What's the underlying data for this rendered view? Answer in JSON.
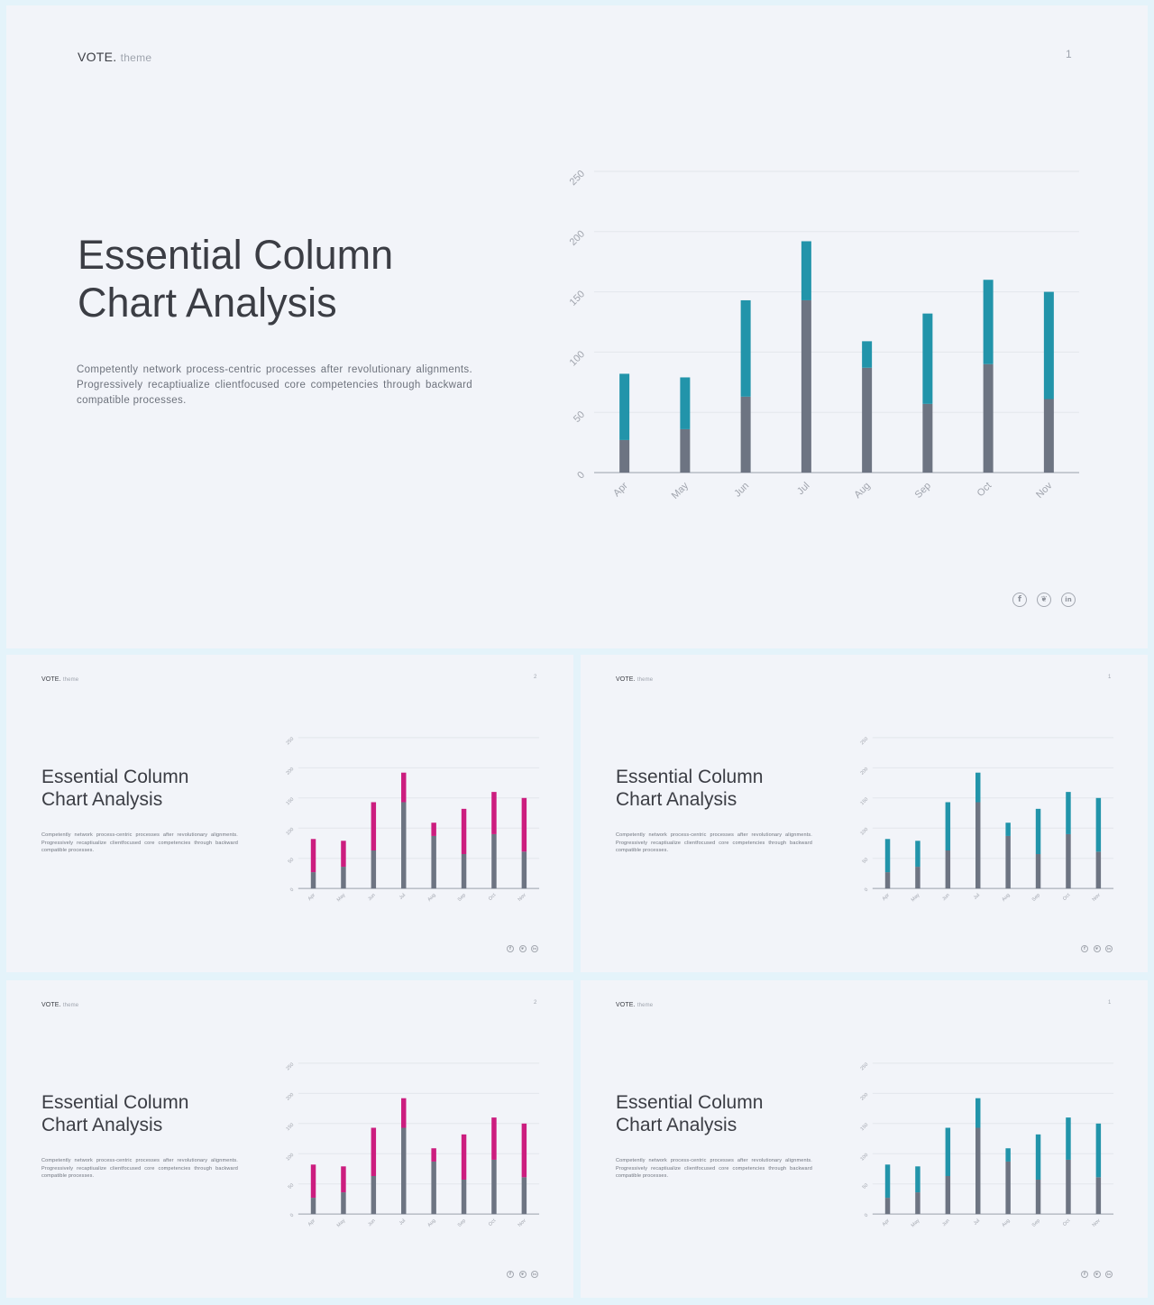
{
  "slides": [
    {
      "brand": "VOTE.",
      "brand_sub": "theme",
      "page_number": "1",
      "title_lines": [
        "Essential Column",
        "Chart Analysis"
      ],
      "body": "Competently network process-centric processes after revolutionary alignments. Progressively recaptiualize clientfocused core competencies through backward compatible processes.",
      "accent_color": "#2294aa",
      "social_icons": [
        "facebook-icon",
        "twitter-icon",
        "linkedin-icon"
      ]
    },
    {
      "brand": "VOTE.",
      "brand_sub": "theme",
      "page_number": "2",
      "title_lines": [
        "Essential Column",
        "Chart Analysis"
      ],
      "body": "Competently network process-centric processes after revolutionary alignments. Progressively recaptiualize clientfocused core competencies through backward compatible processes.",
      "accent_color": "#cc1d7f",
      "social_icons": [
        "facebook-icon",
        "twitter-icon",
        "linkedin-icon"
      ]
    },
    {
      "brand": "VOTE.",
      "brand_sub": "theme",
      "page_number": "1",
      "title_lines": [
        "Essential Column",
        "Chart Analysis"
      ],
      "body": "Competently network process-centric processes after revolutionary alignments. Progressively recaptiualize clientfocused core competencies through backward compatible processes.",
      "accent_color": "#2294aa",
      "social_icons": [
        "facebook-icon",
        "twitter-icon",
        "linkedin-icon"
      ]
    },
    {
      "brand": "VOTE.",
      "brand_sub": "theme",
      "page_number": "2",
      "title_lines": [
        "Essential Column",
        "Chart Analysis"
      ],
      "body": "Competently network process-centric processes after revolutionary alignments. Progressively recaptiualize clientfocused core competencies through backward compatible processes.",
      "accent_color": "#cc1d7f",
      "social_icons": [
        "facebook-icon",
        "twitter-icon",
        "linkedin-icon"
      ]
    },
    {
      "brand": "VOTE.",
      "brand_sub": "theme",
      "page_number": "1",
      "title_lines": [
        "Essential Column",
        "Chart Analysis"
      ],
      "body": "Competently network process-centric processes after revolutionary alignments. Progressively recaptiualize clientfocused core competencies through backward compatible processes.",
      "accent_color": "#2294aa",
      "social_icons": [
        "facebook-icon",
        "twitter-icon",
        "linkedin-icon"
      ]
    }
  ],
  "chart_data": {
    "type": "bar",
    "stacked": true,
    "categories": [
      "Apr",
      "May",
      "Jun",
      "Jul",
      "Aug",
      "Sep",
      "Oct",
      "Nov"
    ],
    "series": [
      {
        "values": [
          27,
          36,
          63,
          143,
          87,
          57,
          90,
          61
        ],
        "color": "#6d7482"
      },
      {
        "values": [
          55,
          43,
          80,
          49,
          22,
          75,
          70,
          89
        ]
      }
    ],
    "yticks": [
      0,
      50,
      100,
      150,
      200,
      250
    ],
    "ylim": [
      0,
      250
    ],
    "grid": true,
    "legend": "none"
  }
}
